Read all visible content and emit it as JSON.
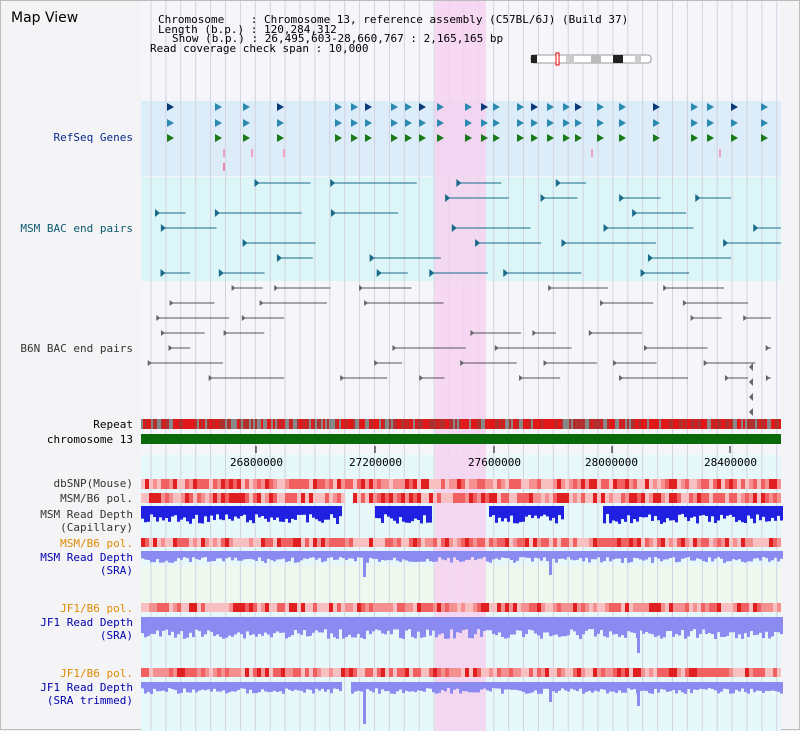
{
  "view_title": "Map View",
  "header": {
    "chromosome_line": "Chromosome    : Chromosome 13, reference assembly (C57BL/6J) (Build 37)",
    "length_line": "Length (b.p.) : 120,284,312",
    "show_line": "Show (b.p.) : 26,495,603-28,660,767 : 2,165,165 bp",
    "coverage_line": "Read coverage check span : 10,000"
  },
  "tracks": {
    "refseq": "RefSeq Genes",
    "msm_bac": "MSM BAC end pairs",
    "b6n_bac": "B6N BAC end pairs",
    "repeat": "Repeat",
    "chromosome": "chromosome 13",
    "dbsnp": "dbSNP(Mouse)",
    "msm_b6_pol_1": "MSM/B6 pol.",
    "msm_read_depth_cap_1": "MSM Read Depth",
    "msm_read_depth_cap_2": "(Capillary)",
    "msm_b6_pol_2": "MSM/B6 pol.",
    "msm_read_depth_sra_1": "MSM Read Depth",
    "msm_read_depth_sra_2": "(SRA)",
    "jf1_b6_pol_1": "JF1/B6 pol.",
    "jf1_read_depth_sra_1": "JF1 Read Depth",
    "jf1_read_depth_sra_2": "(SRA)",
    "jf1_b6_pol_2": "JF1/B6 pol.",
    "jf1_read_depth_trim_1": "JF1 Read Depth",
    "jf1_read_depth_trim_2": "(SRA trimmed)"
  },
  "axis_ticks": [
    "26800000",
    "27200000",
    "27600000",
    "28000000",
    "28400000"
  ],
  "colors": {
    "highlight": "#f6d2f0",
    "refseq_bg": "#dcecf8",
    "msm_bg": "#dcf6f8",
    "gene_dark": "#0a3a7a",
    "gene_mid": "#2a8ab0",
    "gene_green": "#1a7a1a",
    "chromosome_bar": "#0a6a0a",
    "depth_blue": "#2020e0",
    "depth_light": "#8a8af0"
  }
}
